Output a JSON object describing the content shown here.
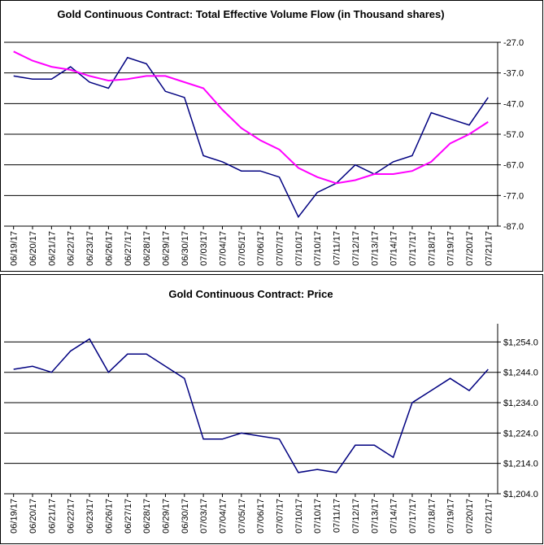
{
  "chart_data": [
    {
      "type": "line",
      "title": "Gold Continuous Contract: Total Effective Volume Flow (in Thousand shares)",
      "categories": [
        "06/19/17",
        "06/20/17",
        "06/21/17",
        "06/22/17",
        "06/23/17",
        "06/26/17",
        "06/27/17",
        "06/28/17",
        "06/29/17",
        "06/30/17",
        "07/03/17",
        "07/04/17",
        "07/05/17",
        "07/06/17",
        "07/07/17",
        "07/10/17",
        "07/10/17",
        "07/11/17",
        "07/12/17",
        "07/13/17",
        "07/14/17",
        "07/17/17",
        "07/18/17",
        "07/19/17",
        "07/20/17",
        "07/21/17"
      ],
      "series": [
        {
          "color": "#000080",
          "values": [
            -38,
            -39,
            -39,
            -35,
            -40,
            -42,
            -32,
            -34,
            -43,
            -45,
            -64,
            -66,
            -69,
            -69,
            -71,
            -84,
            -76,
            -73,
            -67,
            -70,
            -66,
            -64,
            -50,
            -52,
            -54,
            -45
          ]
        },
        {
          "color": "#ff00ff",
          "values": [
            -30,
            -33,
            -35,
            -36,
            -38,
            -39.5,
            -39,
            -38,
            -38,
            -40,
            -42,
            -49,
            -55,
            -59,
            -62,
            -68,
            -71,
            -73,
            -72,
            -70,
            -70,
            -69,
            -66,
            -60,
            -57,
            -53
          ]
        }
      ],
      "ylim": [
        -87,
        -27
      ],
      "yticks": [
        {
          "value": -27,
          "label": "-27.0"
        },
        {
          "value": -37,
          "label": "-37.0"
        },
        {
          "value": -47,
          "label": "-47.0"
        },
        {
          "value": -57,
          "label": "-57.0"
        },
        {
          "value": -67,
          "label": "-67.0"
        },
        {
          "value": -77,
          "label": "-77.0"
        },
        {
          "value": -87,
          "label": "-87.0"
        }
      ],
      "grid": true
    },
    {
      "type": "line",
      "title": "Gold Continuous Contract: Price",
      "categories": [
        "06/19/17",
        "06/20/17",
        "06/21/17",
        "06/22/17",
        "06/23/17",
        "06/26/17",
        "06/27/17",
        "06/28/17",
        "06/29/17",
        "06/30/17",
        "07/03/17",
        "07/04/17",
        "07/05/17",
        "07/06/17",
        "07/07/17",
        "07/10/17",
        "07/10/17",
        "07/11/17",
        "07/12/17",
        "07/13/17",
        "07/14/17",
        "07/17/17",
        "07/18/17",
        "07/19/17",
        "07/20/17",
        "07/21/17"
      ],
      "series": [
        {
          "color": "#000080",
          "values": [
            1245,
            1246,
            1244,
            1251,
            1255,
            1244,
            1250,
            1250,
            1246,
            1242,
            1222,
            1222,
            1224,
            1223,
            1222,
            1211,
            1212,
            1211,
            1220,
            1220,
            1216,
            1234,
            1238,
            1242,
            1238,
            1245
          ]
        }
      ],
      "ylim": [
        1204,
        1260
      ],
      "yticks": [
        {
          "value": 1204,
          "label": "$1,204.0"
        },
        {
          "value": 1214,
          "label": "$1,214.0"
        },
        {
          "value": 1224,
          "label": "$1,224.0"
        },
        {
          "value": 1234,
          "label": "$1,234.0"
        },
        {
          "value": 1244,
          "label": "$1,244.0"
        },
        {
          "value": 1254,
          "label": "$1,254.0"
        }
      ],
      "grid": true
    }
  ]
}
